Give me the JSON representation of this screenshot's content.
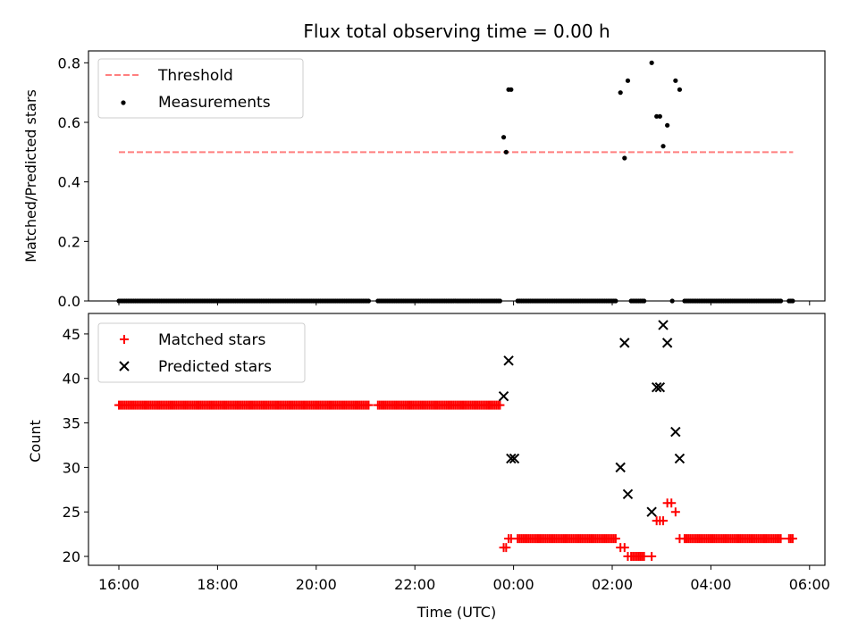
{
  "chart_data": [
    {
      "type": "scatter",
      "title": "Flux total observing time = 0.00 h",
      "xlabel": "",
      "ylabel": "Matched/Predicted stars",
      "ylim": [
        0,
        0.84
      ],
      "yticks": [
        "0.0",
        "0.2",
        "0.4",
        "0.6",
        "0.8"
      ],
      "legend": {
        "placement": "upper-left",
        "entries": [
          "Threshold",
          "Measurements"
        ]
      },
      "threshold": {
        "name": "Threshold",
        "value": 0.5,
        "x_start": "16:00",
        "x_end": "05:40",
        "color": "#ff7f7f",
        "style": "dashed"
      },
      "series": [
        {
          "name": "Measurements",
          "color": "#000000",
          "marker": "dot",
          "points": [
            [
              "23:48",
              0.55
            ],
            [
              "23:51",
              0.5
            ],
            [
              "23:54",
              0.71
            ],
            [
              "23:57",
              0.71
            ],
            [
              "02:10",
              0.7
            ],
            [
              "02:15",
              0.48
            ],
            [
              "02:19",
              0.74
            ],
            [
              "02:48",
              0.8
            ],
            [
              "02:54",
              0.62
            ],
            [
              "02:58",
              0.62
            ],
            [
              "03:02",
              0.52
            ],
            [
              "03:07",
              0.59
            ],
            [
              "03:17",
              0.74
            ],
            [
              "03:22",
              0.71
            ]
          ],
          "zero_ranges": [
            [
              "16:00",
              "21:05"
            ],
            [
              "21:15",
              "23:45"
            ],
            [
              "00:05",
              "02:05"
            ],
            [
              "02:23",
              "02:40"
            ],
            [
              "03:13",
              "03:13"
            ],
            [
              "03:28",
              "05:25"
            ],
            [
              "05:35",
              "05:40"
            ]
          ]
        }
      ]
    },
    {
      "type": "scatter",
      "title": "",
      "xlabel": "Time (UTC)",
      "ylabel": "Count",
      "ylim": [
        19,
        47.3
      ],
      "yticks": [
        "20",
        "25",
        "30",
        "35",
        "40",
        "45"
      ],
      "xticks": [
        "16:00",
        "18:00",
        "20:00",
        "22:00",
        "00:00",
        "02:00",
        "04:00",
        "06:00"
      ],
      "legend": {
        "placement": "upper-left",
        "entries": [
          "Matched stars",
          "Predicted stars"
        ]
      },
      "series": [
        {
          "name": "Matched stars",
          "color": "#ff0000",
          "marker": "plus",
          "ranges": [
            {
              "from": "16:00",
              "to": "21:05",
              "value": 37
            },
            {
              "from": "21:15",
              "to": "23:45",
              "value": 37
            },
            {
              "from": "00:05",
              "to": "02:05",
              "value": 22
            },
            {
              "from": "03:28",
              "to": "05:25",
              "value": 22
            },
            {
              "from": "05:35",
              "to": "05:40",
              "value": 22
            },
            {
              "from": "02:23",
              "to": "02:40",
              "value": 20
            }
          ],
          "points": [
            [
              "23:48",
              21
            ],
            [
              "23:51",
              21
            ],
            [
              "23:54",
              22
            ],
            [
              "23:57",
              22
            ],
            [
              "02:10",
              21
            ],
            [
              "02:15",
              21
            ],
            [
              "02:19",
              20
            ],
            [
              "02:48",
              20
            ],
            [
              "02:54",
              24
            ],
            [
              "02:58",
              24
            ],
            [
              "03:02",
              24
            ],
            [
              "03:07",
              26
            ],
            [
              "03:12",
              26
            ],
            [
              "03:17",
              25
            ],
            [
              "03:22",
              22
            ]
          ]
        },
        {
          "name": "Predicted stars",
          "color": "#000000",
          "marker": "x",
          "points": [
            [
              "23:48",
              38
            ],
            [
              "23:54",
              42
            ],
            [
              "23:57",
              31
            ],
            [
              "00:01",
              31
            ],
            [
              "02:10",
              30
            ],
            [
              "02:15",
              44
            ],
            [
              "02:19",
              27
            ],
            [
              "02:48",
              25
            ],
            [
              "02:54",
              39
            ],
            [
              "02:58",
              39
            ],
            [
              "03:02",
              46
            ],
            [
              "03:07",
              44
            ],
            [
              "03:17",
              34
            ],
            [
              "03:22",
              31
            ]
          ]
        }
      ]
    }
  ]
}
